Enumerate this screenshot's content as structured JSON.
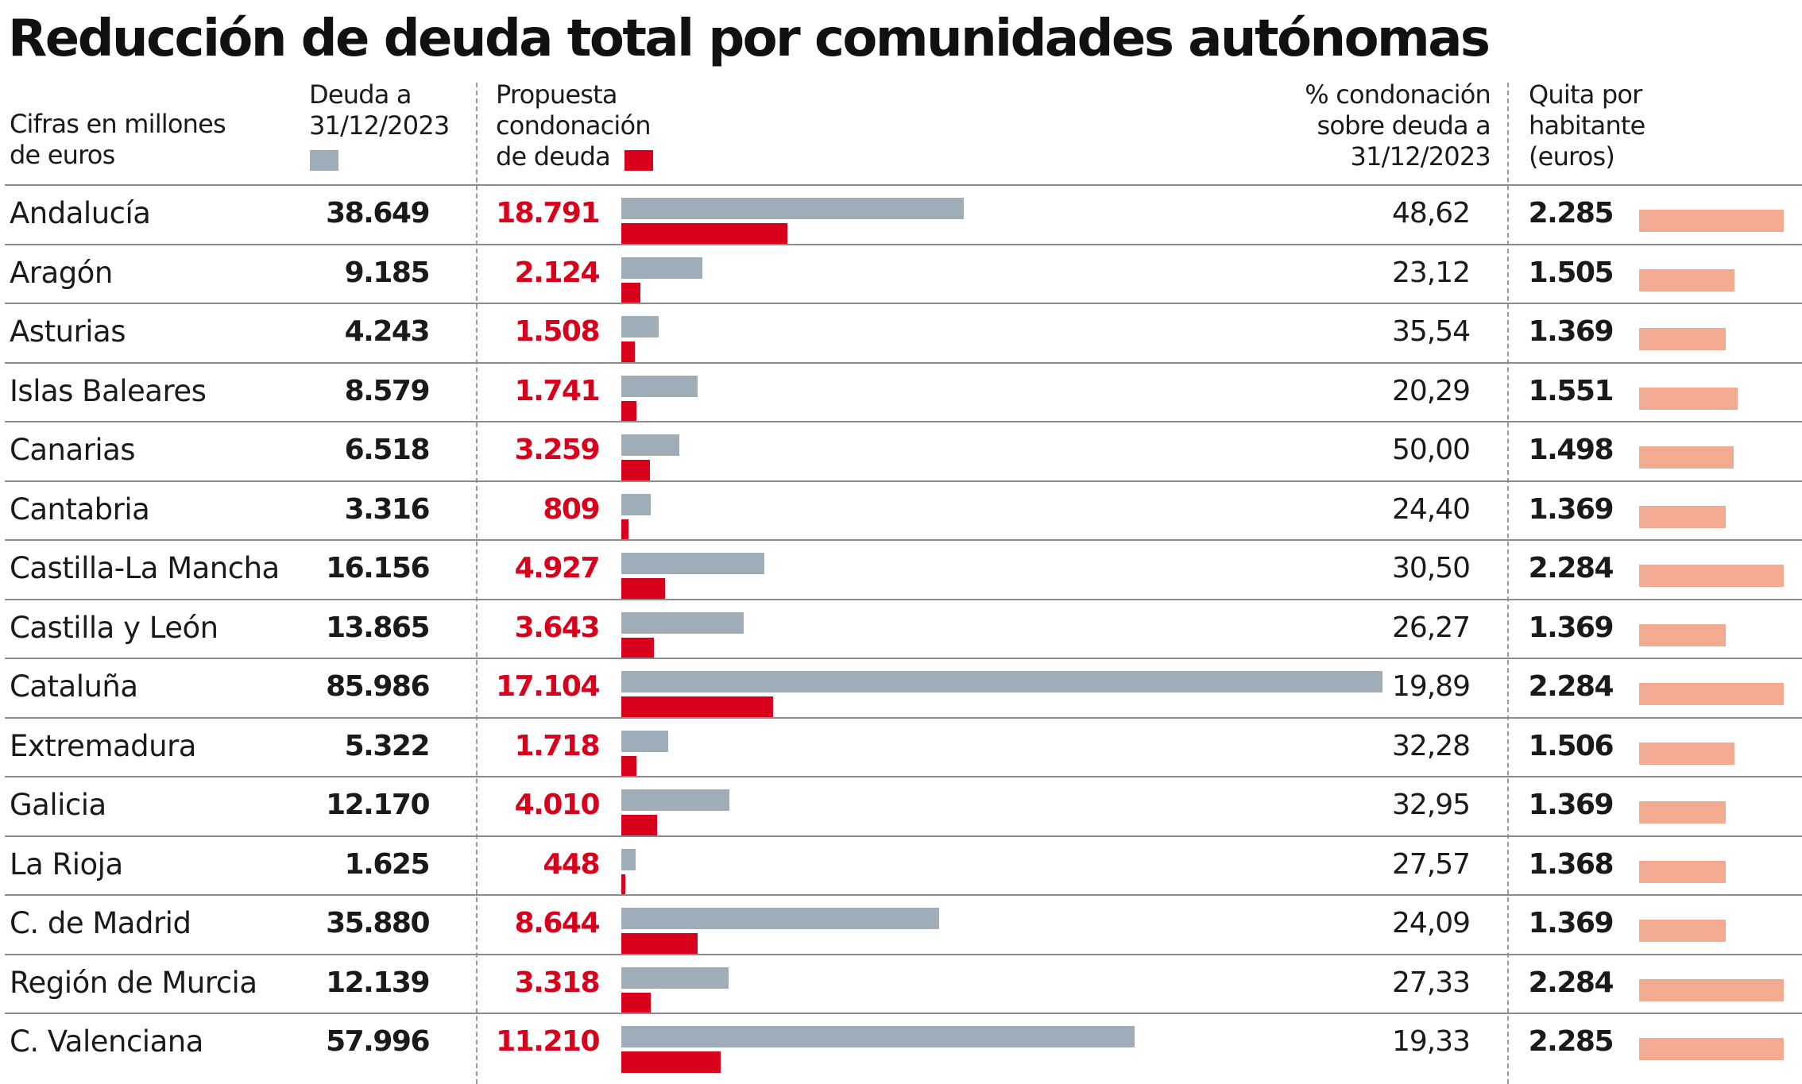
{
  "title": "Reducción de deuda total por comunidades autónomas",
  "headers": {
    "units": "Cifras en millones\nde euros",
    "deuda": "Deuda a\n31/12/2023",
    "condonacion": "Propuesta\ncondonación\nde deuda",
    "pct": "% condonación\nsobre deuda a\n31/12/2023",
    "quita": "Quita por\nhabitante\n(euros)"
  },
  "colors": {
    "deuda_bar": "#9fadb8",
    "condonacion_bar": "#d9001b",
    "quita_bar": "#f2aa91",
    "condonacion_text": "#d9001b"
  },
  "chart_data": {
    "type": "bar",
    "categories": [
      "Andalucía",
      "Aragón",
      "Asturias",
      "Islas Baleares",
      "Canarias",
      "Cantabria",
      "Castilla-La Mancha",
      "Castilla y León",
      "Cataluña",
      "Extremadura",
      "Galicia",
      "La Rioja",
      "C. de Madrid",
      "Región de Murcia",
      "C. Valenciana"
    ],
    "series": [
      {
        "name": "Deuda a 31/12/2023",
        "values": [
          38649,
          9185,
          4243,
          8579,
          6518,
          3316,
          16156,
          13865,
          85986,
          5322,
          12170,
          1625,
          35880,
          12139,
          57996
        ],
        "labels": [
          "38.649",
          "9.185",
          "4.243",
          "8.579",
          "6.518",
          "3.316",
          "16.156",
          "13.865",
          "85.986",
          "5.322",
          "12.170",
          "1.625",
          "35.880",
          "12.139",
          "57.996"
        ]
      },
      {
        "name": "Propuesta condonación de deuda",
        "values": [
          18791,
          2124,
          1508,
          1741,
          3259,
          809,
          4927,
          3643,
          17104,
          1718,
          4010,
          448,
          8644,
          3318,
          11210
        ],
        "labels": [
          "18.791",
          "2.124",
          "1.508",
          "1.741",
          "3.259",
          "809",
          "4.927",
          "3.643",
          "17.104",
          "1.718",
          "4.010",
          "448",
          "8.644",
          "3.318",
          "11.210"
        ]
      },
      {
        "name": "% condonación sobre deuda a 31/12/2023",
        "values": [
          48.62,
          23.12,
          35.54,
          20.29,
          50.0,
          24.4,
          30.5,
          26.27,
          19.89,
          32.28,
          32.95,
          27.57,
          24.09,
          27.33,
          19.33
        ],
        "labels": [
          "48,62",
          "23,12",
          "35,54",
          "20,29",
          "50,00",
          "24,40",
          "30,50",
          "26,27",
          "19,89",
          "32,28",
          "32,95",
          "27,57",
          "24,09",
          "27,33",
          "19,33"
        ]
      },
      {
        "name": "Quita por habitante (euros)",
        "values": [
          2285,
          1505,
          1369,
          1551,
          1498,
          1369,
          2284,
          1369,
          2284,
          1506,
          1369,
          1368,
          1369,
          2284,
          2285
        ],
        "labels": [
          "2.285",
          "1.505",
          "1.369",
          "1.551",
          "1.498",
          "1.369",
          "2.284",
          "1.369",
          "2.284",
          "1.506",
          "1.369",
          "1.368",
          "1.369",
          "2.284",
          "2.285"
        ]
      }
    ],
    "grid": false,
    "legend": "column headers"
  }
}
